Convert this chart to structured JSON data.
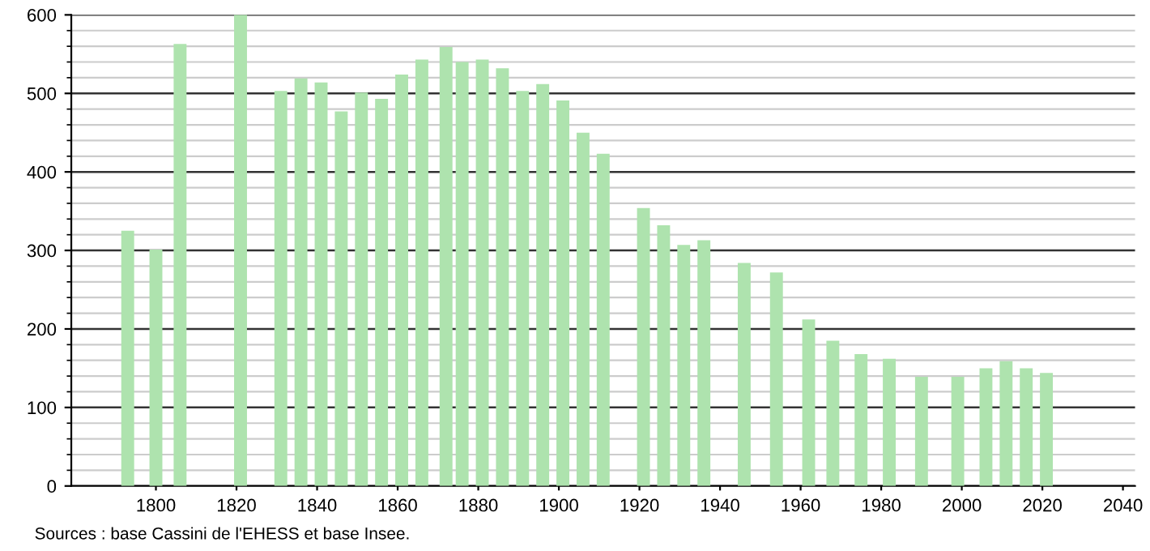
{
  "chart_data": {
    "type": "bar",
    "x": [
      1793,
      1800,
      1806,
      1821,
      1831,
      1836,
      1841,
      1846,
      1851,
      1856,
      1861,
      1866,
      1872,
      1876,
      1881,
      1886,
      1891,
      1896,
      1901,
      1906,
      1911,
      1921,
      1926,
      1931,
      1936,
      1946,
      1954,
      1962,
      1968,
      1975,
      1982,
      1990,
      1999,
      2006,
      2011,
      2016,
      2021
    ],
    "values": [
      325,
      301,
      563,
      600,
      503,
      519,
      514,
      477,
      501,
      493,
      524,
      543,
      559,
      540,
      543,
      532,
      503,
      512,
      491,
      450,
      423,
      354,
      332,
      307,
      313,
      284,
      272,
      212,
      185,
      168,
      162,
      139,
      139,
      150,
      159,
      150,
      144
    ],
    "color": "#aee3ae",
    "xlim": [
      1779,
      2043
    ],
    "xticks": [
      1800,
      1820,
      1840,
      1860,
      1880,
      1900,
      1920,
      1940,
      1960,
      1980,
      2000,
      2020,
      2040
    ],
    "ylim": [
      0,
      600
    ],
    "yticks": [
      0,
      100,
      200,
      300,
      400,
      500,
      600
    ],
    "grid": "y",
    "annotations": [
      "Sources : base Cassini de l'EHESS et base Insee."
    ]
  }
}
